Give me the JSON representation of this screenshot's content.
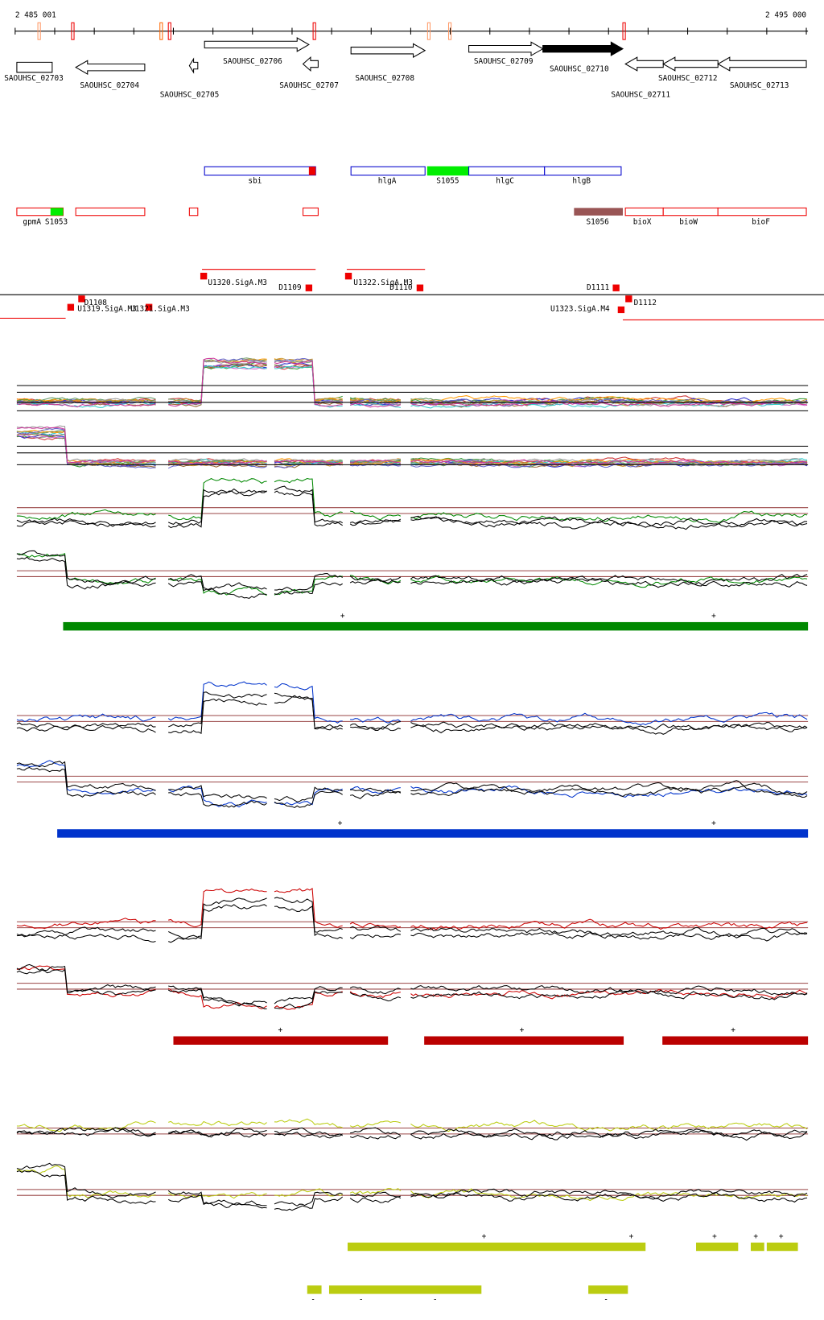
{
  "ruler": {
    "start": "2 485 001",
    "end": "2 495 000"
  },
  "genes": [
    "SAOUHSC_02703",
    "SAOUHSC_02704",
    "SAOUHSC_02705",
    "SAOUHSC_02706",
    "SAOUHSC_02707",
    "SAOUHSC_02708",
    "SAOUHSC_02709",
    "SAOUHSC_02710",
    "SAOUHSC_02711",
    "SAOUHSC_02712",
    "SAOUHSC_02713"
  ],
  "features": [
    "sbi",
    "hlgA",
    "S1055",
    "hlgC",
    "hlgB"
  ],
  "features2": [
    "gpmA",
    "S1053",
    "S1056",
    "bioX",
    "bioW",
    "bioF"
  ],
  "promoters": [
    "U1320.SigA.M3",
    "D1109",
    "U1322.SigA.M3",
    "D1110",
    "D1111",
    "D1112",
    "D1108",
    "U1319.SigA.M3",
    "U1321.SigA.M3",
    "U1323.SigA.M4"
  ],
  "segments": {
    "green": [
      "+",
      "+"
    ],
    "blue": [
      "+",
      "+"
    ],
    "red": [
      "+",
      "+",
      "+"
    ],
    "yellow": [
      "+",
      "+",
      "+",
      "+",
      "+"
    ],
    "yellow_minus": [
      "-",
      "-",
      "-",
      "-"
    ]
  }
}
